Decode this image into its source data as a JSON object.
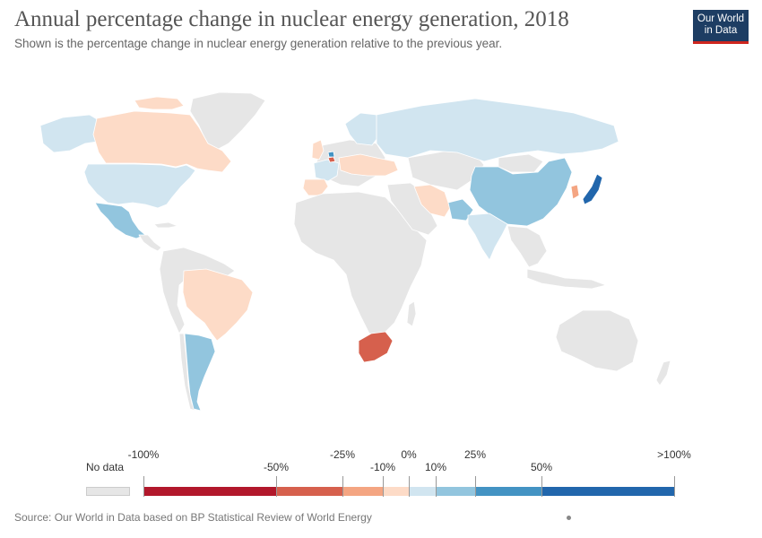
{
  "header": {
    "title": "Annual percentage change in nuclear energy generation, 2018",
    "subtitle": "Shown is the percentage change in nuclear energy generation relative to the previous year."
  },
  "logo": {
    "line1": "Our World",
    "line2": "in Data"
  },
  "legend": {
    "no_data_label": "No data",
    "no_data_color": "#e6e6e6",
    "bins": [
      {
        "from": "-100%",
        "to": "-50%",
        "color": "#b2182b"
      },
      {
        "from": "-50%",
        "to": "-25%",
        "color": "#d6604d"
      },
      {
        "from": "-25%",
        "to": "-10%",
        "color": "#f4a582"
      },
      {
        "from": "-10%",
        "to": "0%",
        "color": "#fddbc7"
      },
      {
        "from": "0%",
        "to": "10%",
        "color": "#d1e5f0"
      },
      {
        "from": "10%",
        "to": "25%",
        "color": "#92c5de"
      },
      {
        "from": "25%",
        "to": "50%",
        "color": "#4393c3"
      },
      {
        "from": "50%",
        "to": ">100%",
        "color": "#2166ac"
      }
    ],
    "tick_labels": [
      "-100%",
      "-50%",
      "-25%",
      "-10%",
      "0%",
      "10%",
      "25%",
      "50%",
      ">100%"
    ]
  },
  "regions": [
    {
      "name": "Canada",
      "bin": "-10% to 0%"
    },
    {
      "name": "United States",
      "bin": "0% to 10%"
    },
    {
      "name": "Mexico",
      "bin": "10% to 25%"
    },
    {
      "name": "Brazil",
      "bin": "-10% to 0%"
    },
    {
      "name": "Argentina",
      "bin": "10% to 25%"
    },
    {
      "name": "South Africa",
      "bin": "-50% to -25%"
    },
    {
      "name": "Russia",
      "bin": "0% to 10%"
    },
    {
      "name": "China",
      "bin": "10% to 25%"
    },
    {
      "name": "India",
      "bin": "0% to 10%"
    },
    {
      "name": "Pakistan",
      "bin": "10% to 25%"
    },
    {
      "name": "Iran",
      "bin": "-10% to 0%"
    },
    {
      "name": "Japan",
      "bin": "50% to >100%"
    },
    {
      "name": "South Korea",
      "bin": "-25% to -10%"
    },
    {
      "name": "Spain",
      "bin": "-10% to 0%"
    },
    {
      "name": "France",
      "bin": "0% to 10%"
    },
    {
      "name": "Belgium",
      "bin": "-50% to -25%"
    },
    {
      "name": "Netherlands",
      "bin": "25% to 50%"
    },
    {
      "name": "United Kingdom",
      "bin": "-10% to 0%"
    },
    {
      "name": "Sweden",
      "bin": "0% to 10%"
    },
    {
      "name": "Finland",
      "bin": "0% to 10%"
    },
    {
      "name": "Ukraine",
      "bin": "-10% to 0%"
    }
  ],
  "colors": {
    "land_no_data": "#e6e6e6",
    "border": "#ffffff",
    "title": "#555555",
    "logo_bg": "#1d3d63",
    "logo_bar": "#ce261e"
  },
  "footer": {
    "source": "Source: Our World in Data based on BP Statistical Review of World Energy"
  }
}
